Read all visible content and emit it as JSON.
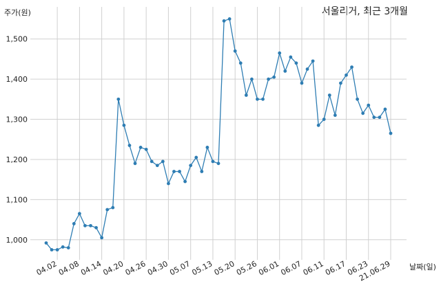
{
  "chart_data": {
    "type": "line",
    "title": "서울리거, 최근 3개월",
    "ylabel": "주가(원)",
    "xlabel": "날짜(일)",
    "ylim": [
      950,
      1580
    ],
    "yticks": [
      1000,
      1100,
      1200,
      1300,
      1400,
      1500
    ],
    "ytick_labels": [
      "1,000",
      "1,100",
      "1,200",
      "1,300",
      "1,400",
      "1,500"
    ],
    "grid": true,
    "color": "#2e7db3",
    "xtick_labels": [
      "04.02",
      "04.08",
      "04.14",
      "04.20",
      "04.26",
      "04.30",
      "05.07",
      "05.13",
      "05.20",
      "05.26",
      "06.01",
      "06.07",
      "06.11",
      "06.17",
      "06.23",
      "21.06.29"
    ],
    "xtick_indices": [
      2,
      6,
      10,
      14,
      18,
      22,
      26,
      30,
      34,
      38,
      42,
      46,
      50,
      54,
      58,
      62
    ],
    "series": [
      {
        "values": [
          992,
          975,
          975,
          982,
          980,
          1040,
          1065,
          1035,
          1035,
          1030,
          1005,
          1075,
          1080,
          1350,
          1285,
          1235,
          1190,
          1230,
          1225,
          1195,
          1185,
          1195,
          1140,
          1170,
          1170,
          1145,
          1185,
          1205,
          1170,
          1230,
          1195,
          1190,
          1545,
          1550,
          1470,
          1440,
          1360,
          1400,
          1350,
          1350,
          1400,
          1405,
          1465,
          1420,
          1455,
          1440,
          1390,
          1425,
          1445,
          1285,
          1300,
          1360,
          1310,
          1390,
          1410,
          1430,
          1350,
          1315,
          1335,
          1305,
          1305,
          1325,
          1265
        ]
      }
    ]
  }
}
